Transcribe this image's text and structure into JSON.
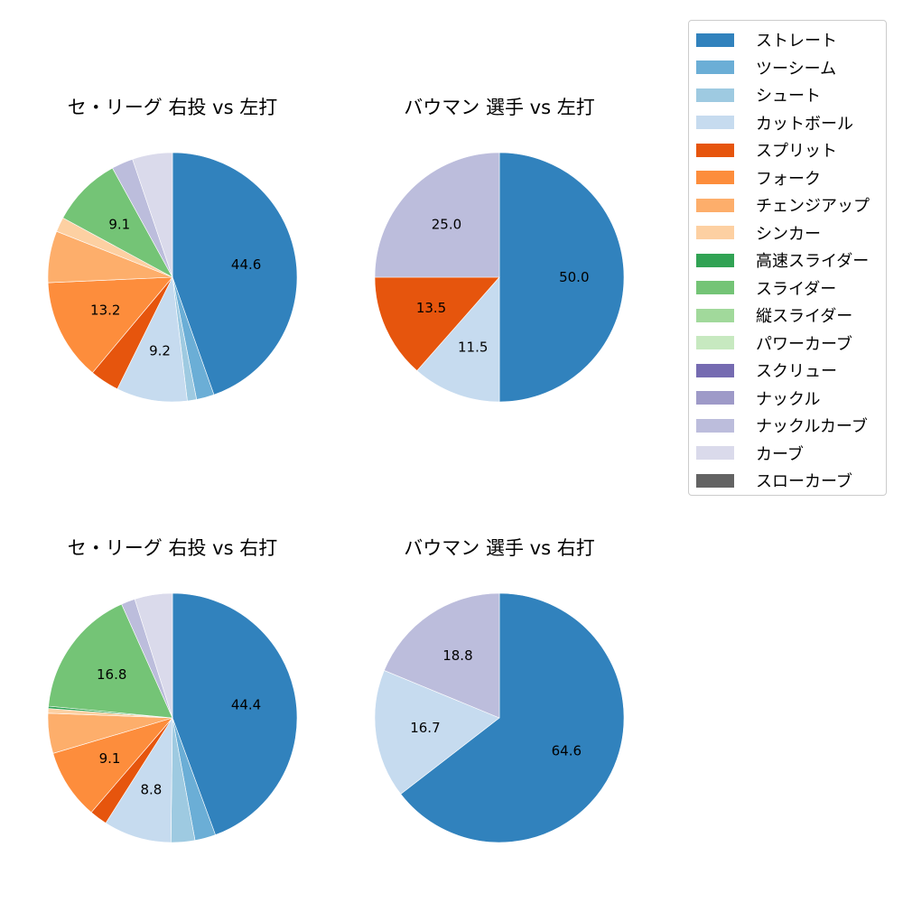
{
  "chart_data": [
    {
      "type": "pie",
      "title": "セ・リーグ 右投 vs 左打",
      "categories": [
        "ストレート",
        "ツーシーム",
        "シュート",
        "カットボール",
        "スプリット",
        "フォーク",
        "チェンジアップ",
        "シンカー",
        "スライダー",
        "ナックルカーブ",
        "カーブ"
      ],
      "values": [
        44.6,
        2.3,
        1.2,
        9.2,
        3.8,
        13.2,
        6.7,
        1.9,
        9.1,
        2.8,
        5.2
      ],
      "labels_shown": {
        "ストレート": "44.6",
        "カットボール": "9.2",
        "フォーク": "13.2",
        "スライダー": "9.1"
      }
    },
    {
      "type": "pie",
      "title": "バウマン 選手 vs 左打",
      "categories": [
        "ストレート",
        "カットボール",
        "スプリット",
        "ナックルカーブ"
      ],
      "values": [
        50.0,
        11.5,
        13.5,
        25.0
      ],
      "labels_shown": {
        "ストレート": "50.0",
        "カットボール": "11.5",
        "スプリット": "13.5",
        "ナックルカーブ": "25.0"
      }
    },
    {
      "type": "pie",
      "title": "セ・リーグ 右投 vs 右打",
      "categories": [
        "ストレート",
        "ツーシーム",
        "シュート",
        "カットボール",
        "スプリット",
        "フォーク",
        "チェンジアップ",
        "シンカー",
        "高速スライダー",
        "スライダー",
        "ナックルカーブ",
        "カーブ"
      ],
      "values": [
        44.4,
        2.7,
        3.1,
        8.8,
        2.3,
        9.1,
        5.2,
        0.6,
        0.3,
        16.8,
        1.8,
        4.9
      ],
      "labels_shown": {
        "ストレート": "44.4",
        "カットボール": "8.8",
        "フォーク": "9.1",
        "スライダー": "16.8"
      }
    },
    {
      "type": "pie",
      "title": "バウマン 選手 vs 右打",
      "categories": [
        "ストレート",
        "カットボール",
        "ナックルカーブ"
      ],
      "values": [
        64.6,
        16.7,
        18.8
      ],
      "labels_shown": {
        "ストレート": "64.6",
        "カットボール": "16.7",
        "ナックルカーブ": "18.8"
      }
    }
  ],
  "legend": {
    "position": "upper right",
    "items": [
      {
        "label": "ストレート",
        "color": "#3182bd"
      },
      {
        "label": "ツーシーム",
        "color": "#6baed6"
      },
      {
        "label": "シュート",
        "color": "#9ecae1"
      },
      {
        "label": "カットボール",
        "color": "#c6dbef"
      },
      {
        "label": "スプリット",
        "color": "#e6550d"
      },
      {
        "label": "フォーク",
        "color": "#fd8d3c"
      },
      {
        "label": "チェンジアップ",
        "color": "#fdae6b"
      },
      {
        "label": "シンカー",
        "color": "#fdd0a2"
      },
      {
        "label": "高速スライダー",
        "color": "#31a354"
      },
      {
        "label": "スライダー",
        "color": "#74c476"
      },
      {
        "label": "縦スライダー",
        "color": "#a1d99b"
      },
      {
        "label": "パワーカーブ",
        "color": "#c7e9c0"
      },
      {
        "label": "スクリュー",
        "color": "#756bb1"
      },
      {
        "label": "ナックル",
        "color": "#9e9ac8"
      },
      {
        "label": "ナックルカーブ",
        "color": "#bcbddc"
      },
      {
        "label": "カーブ",
        "color": "#dadaeb"
      },
      {
        "label": "スローカーブ",
        "color": "#636363"
      }
    ]
  },
  "panels": [
    {
      "title": "セ・リーグ 右投 vs 左打"
    },
    {
      "title": "バウマン 選手 vs 左打"
    },
    {
      "title": "セ・リーグ 右投 vs 右打"
    },
    {
      "title": "バウマン 選手 vs 右打"
    }
  ]
}
